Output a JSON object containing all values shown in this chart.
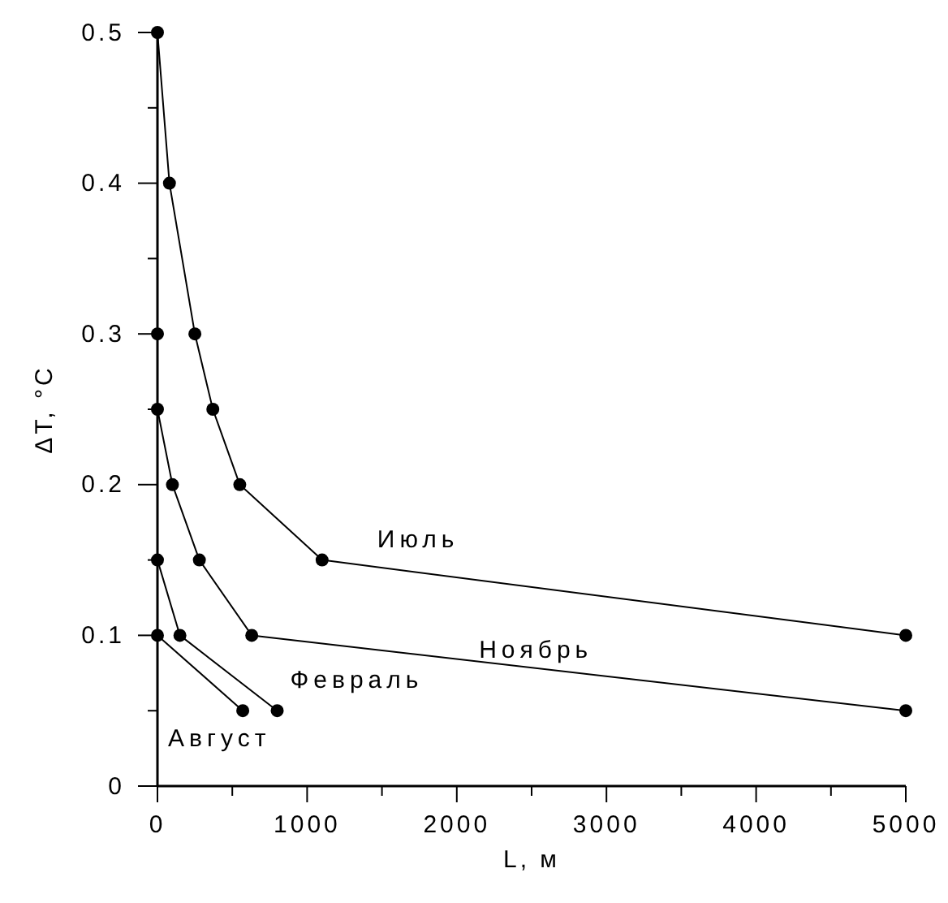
{
  "chart_data": {
    "type": "line",
    "xlabel": "L, м",
    "ylabel": "ΔT, °C",
    "marker": "circle",
    "line_style": "solid",
    "grid": false,
    "legend": false,
    "xlim": [
      0,
      5000
    ],
    "ylim": [
      0,
      0.5
    ],
    "xticks": [
      0,
      {
        "value": 500,
        "label": null
      },
      1000,
      {
        "value": 1500,
        "label": null
      },
      2000,
      {
        "value": 2500,
        "label": null
      },
      3000,
      {
        "value": 3500,
        "label": null
      },
      4000,
      {
        "value": 4500,
        "label": null
      },
      5000
    ],
    "yticks": [
      0,
      {
        "value": 0.05,
        "label": null
      },
      0.1,
      {
        "value": 0.15,
        "label": null
      },
      0.2,
      {
        "value": 0.25,
        "label": null
      },
      0.3,
      {
        "value": 0.35,
        "label": null
      },
      0.4,
      {
        "value": 0.45,
        "label": null
      },
      0.5
    ],
    "series": [
      {
        "name": "Июль",
        "color": "#000000",
        "x": [
          0,
          80,
          250,
          370,
          550,
          1100,
          5000
        ],
        "values": [
          0.5,
          0.4,
          0.3,
          0.25,
          0.2,
          0.15,
          0.1
        ]
      },
      {
        "name": "Ноябрь",
        "color": "#000000",
        "x": [
          0,
          0,
          100,
          280,
          630,
          5000
        ],
        "values": [
          0.3,
          0.25,
          0.2,
          0.15,
          0.1,
          0.05
        ]
      },
      {
        "name": "Февраль",
        "color": "#000000",
        "x": [
          0,
          150,
          800
        ],
        "values": [
          0.15,
          0.1,
          0.05
        ]
      },
      {
        "name": "Август",
        "color": "#000000",
        "x": [
          0,
          570
        ],
        "values": [
          0.1,
          0.05
        ]
      }
    ]
  }
}
